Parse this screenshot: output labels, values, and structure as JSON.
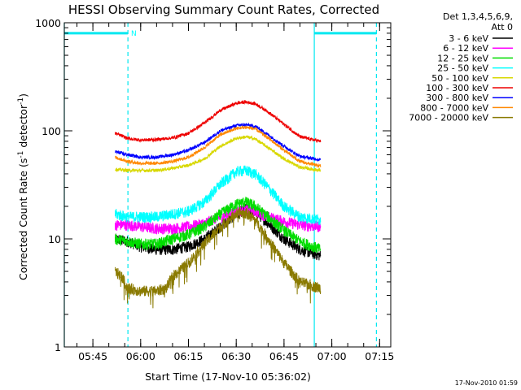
{
  "chart_data": {
    "type": "line",
    "title": "HESSI Observing Summary Count Rates, Corrected",
    "xlabel": "Start Time (17-Nov-10 05:36:02)",
    "ylabel_prefix": "Corrected Count Rate (s",
    "ylabel_sup1": "-1",
    "ylabel_mid": " detector",
    "ylabel_sup2": "-1",
    "ylabel_suffix": ")",
    "y_scale": "log",
    "ylim": [
      1,
      1000
    ],
    "xlim": [
      "05:36:02",
      "07:18:30"
    ],
    "x_ticks": [
      {
        "t": "05:45",
        "label": "05:45"
      },
      {
        "t": "06:00",
        "label": "06:00"
      },
      {
        "t": "06:15",
        "label": "06:15"
      },
      {
        "t": "06:30",
        "label": "06:30"
      },
      {
        "t": "06:45",
        "label": "06:45"
      },
      {
        "t": "07:00",
        "label": "07:00"
      },
      {
        "t": "07:15",
        "label": "07:15"
      }
    ],
    "y_ticks": [
      {
        "v": 1,
        "label": "1"
      },
      {
        "v": 10,
        "label": "10"
      },
      {
        "v": 100,
        "label": "100"
      },
      {
        "v": 1000,
        "label": "1000"
      }
    ],
    "legend_header": [
      "Det 1,3,4,5,6,9,",
      "Att 0"
    ],
    "legend_position": "outside-right",
    "annotation": {
      "text": "N",
      "color": "#00ffff",
      "at": "05:57"
    },
    "attenuator_bars": [
      {
        "start": "05:36:02",
        "end": "05:56:00",
        "level": 800
      },
      {
        "start": "06:54:30",
        "end": "07:14:00",
        "level": 800
      }
    ],
    "vertical_lines": [
      {
        "t": "05:36:02",
        "style": "solid"
      },
      {
        "t": "05:56:00",
        "style": "dashed"
      },
      {
        "t": "06:54:30",
        "style": "solid"
      },
      {
        "t": "07:14:00",
        "style": "dashed"
      }
    ],
    "guide_color": "#00e8f0",
    "data_start": "05:52:00",
    "data_end": "06:56:30",
    "series": [
      {
        "name": "3 - 6 keV",
        "color": "#000000",
        "values": [
          [
            "05:52:00",
            10
          ],
          [
            "05:56:00",
            9.5
          ],
          [
            "06:00:00",
            8.5
          ],
          [
            "06:05:00",
            8
          ],
          [
            "06:10:00",
            8
          ],
          [
            "06:15:00",
            8.5
          ],
          [
            "06:20:00",
            10
          ],
          [
            "06:25:00",
            13
          ],
          [
            "06:30:00",
            17
          ],
          [
            "06:33:00",
            19
          ],
          [
            "06:36:00",
            18
          ],
          [
            "06:40:00",
            14
          ],
          [
            "06:45:00",
            10
          ],
          [
            "06:50:00",
            8
          ],
          [
            "06:56:30",
            7
          ]
        ]
      },
      {
        "name": "6 - 12 keV",
        "color": "#ff00ff",
        "values": [
          [
            "05:52:00",
            13.5
          ],
          [
            "05:56:00",
            13.5
          ],
          [
            "06:00:00",
            13
          ],
          [
            "06:05:00",
            12.5
          ],
          [
            "06:10:00",
            12.5
          ],
          [
            "06:15:00",
            13
          ],
          [
            "06:20:00",
            14
          ],
          [
            "06:25:00",
            16
          ],
          [
            "06:30:00",
            18
          ],
          [
            "06:33:00",
            18.5
          ],
          [
            "06:36:00",
            18
          ],
          [
            "06:40:00",
            16
          ],
          [
            "06:45:00",
            14.5
          ],
          [
            "06:50:00",
            13.5
          ],
          [
            "06:56:30",
            13
          ]
        ]
      },
      {
        "name": "12 - 25 keV",
        "color": "#00dd00",
        "values": [
          [
            "05:52:00",
            10
          ],
          [
            "05:56:00",
            9.5
          ],
          [
            "06:00:00",
            9
          ],
          [
            "06:05:00",
            9
          ],
          [
            "06:10:00",
            10
          ],
          [
            "06:15:00",
            11
          ],
          [
            "06:20:00",
            13
          ],
          [
            "06:25:00",
            17
          ],
          [
            "06:30:00",
            21
          ],
          [
            "06:33:00",
            22
          ],
          [
            "06:36:00",
            20
          ],
          [
            "06:40:00",
            16
          ],
          [
            "06:45:00",
            12
          ],
          [
            "06:50:00",
            9.5
          ],
          [
            "06:56:30",
            8
          ]
        ]
      },
      {
        "name": "25 - 50 keV",
        "color": "#00ffff",
        "values": [
          [
            "05:52:00",
            17
          ],
          [
            "05:56:00",
            16
          ],
          [
            "06:00:00",
            16
          ],
          [
            "06:05:00",
            16
          ],
          [
            "06:10:00",
            17
          ],
          [
            "06:15:00",
            18
          ],
          [
            "06:20:00",
            22
          ],
          [
            "06:25:00",
            32
          ],
          [
            "06:30:00",
            42
          ],
          [
            "06:33:00",
            43
          ],
          [
            "06:36:00",
            40
          ],
          [
            "06:40:00",
            30
          ],
          [
            "06:45:00",
            20
          ],
          [
            "06:50:00",
            16
          ],
          [
            "06:56:30",
            15
          ]
        ]
      },
      {
        "name": "50 - 100 keV",
        "color": "#d8d800",
        "values": [
          [
            "05:52:00",
            44
          ],
          [
            "05:56:00",
            43
          ],
          [
            "06:00:00",
            43
          ],
          [
            "06:05:00",
            43
          ],
          [
            "06:10:00",
            45
          ],
          [
            "06:15:00",
            48
          ],
          [
            "06:20:00",
            55
          ],
          [
            "06:25:00",
            72
          ],
          [
            "06:30:00",
            85
          ],
          [
            "06:33:00",
            88
          ],
          [
            "06:36:00",
            84
          ],
          [
            "06:40:00",
            70
          ],
          [
            "06:45:00",
            55
          ],
          [
            "06:50:00",
            46
          ],
          [
            "06:56:30",
            43
          ]
        ]
      },
      {
        "name": "100 - 300 keV",
        "color": "#ee0000",
        "values": [
          [
            "05:52:00",
            95
          ],
          [
            "05:56:00",
            85
          ],
          [
            "06:00:00",
            82
          ],
          [
            "06:05:00",
            83
          ],
          [
            "06:10:00",
            86
          ],
          [
            "06:15:00",
            95
          ],
          [
            "06:20:00",
            118
          ],
          [
            "06:25:00",
            155
          ],
          [
            "06:30:00",
            180
          ],
          [
            "06:33:00",
            185
          ],
          [
            "06:36:00",
            178
          ],
          [
            "06:40:00",
            150
          ],
          [
            "06:45:00",
            115
          ],
          [
            "06:50:00",
            88
          ],
          [
            "06:56:30",
            80
          ]
        ]
      },
      {
        "name": "300 - 800 keV",
        "color": "#0000ff",
        "values": [
          [
            "05:52:00",
            64
          ],
          [
            "05:56:00",
            60
          ],
          [
            "06:00:00",
            57
          ],
          [
            "06:05:00",
            57
          ],
          [
            "06:10:00",
            60
          ],
          [
            "06:15:00",
            66
          ],
          [
            "06:20:00",
            78
          ],
          [
            "06:25:00",
            100
          ],
          [
            "06:30:00",
            112
          ],
          [
            "06:33:00",
            114
          ],
          [
            "06:36:00",
            110
          ],
          [
            "06:40:00",
            92
          ],
          [
            "06:45:00",
            72
          ],
          [
            "06:50:00",
            58
          ],
          [
            "06:56:30",
            54
          ]
        ]
      },
      {
        "name": "800 - 7000 keV",
        "color": "#ff8800",
        "values": [
          [
            "05:52:00",
            57
          ],
          [
            "05:56:00",
            52
          ],
          [
            "06:00:00",
            50
          ],
          [
            "06:05:00",
            50
          ],
          [
            "06:10:00",
            52
          ],
          [
            "06:15:00",
            57
          ],
          [
            "06:20:00",
            70
          ],
          [
            "06:25:00",
            92
          ],
          [
            "06:30:00",
            105
          ],
          [
            "06:33:00",
            108
          ],
          [
            "06:36:00",
            104
          ],
          [
            "06:40:00",
            86
          ],
          [
            "06:45:00",
            66
          ],
          [
            "06:50:00",
            52
          ],
          [
            "06:56:30",
            47
          ]
        ]
      },
      {
        "name": "7000 - 20000 keV",
        "color": "#8a7a00",
        "values": [
          [
            "05:52:00",
            5
          ],
          [
            "05:54:00",
            4.5
          ],
          [
            "05:56:00",
            3.5
          ],
          [
            "06:00:00",
            3.3
          ],
          [
            "06:05:00",
            3.3
          ],
          [
            "06:08:00",
            3.5
          ],
          [
            "06:10:00",
            4.5
          ],
          [
            "06:15:00",
            6
          ],
          [
            "06:20:00",
            9
          ],
          [
            "06:25:00",
            13
          ],
          [
            "06:30:00",
            17
          ],
          [
            "06:33:00",
            17.5
          ],
          [
            "06:36:00",
            15
          ],
          [
            "06:40:00",
            10
          ],
          [
            "06:45:00",
            6
          ],
          [
            "06:50:00",
            4
          ],
          [
            "06:56:30",
            3.5
          ]
        ]
      }
    ]
  },
  "footer": {
    "timestamp": "17-Nov-2010 01:59"
  }
}
